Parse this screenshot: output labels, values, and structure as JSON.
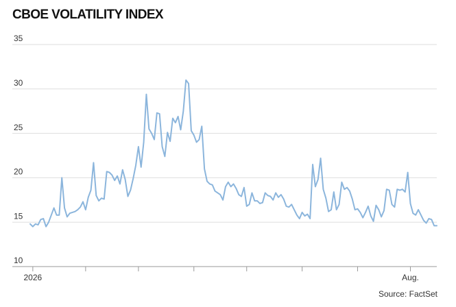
{
  "chart_data": {
    "type": "line",
    "title": "CBOE VOLATILITY INDEX",
    "source": "Source: FactSet",
    "color": "#8bb5dc",
    "grid": true,
    "ylim": [
      10,
      35
    ],
    "yticks": [
      10,
      15,
      20,
      25,
      30,
      35
    ],
    "xticks": [
      1,
      21,
      41,
      62,
      82,
      103,
      124,
      144
    ],
    "categories": [
      null,
      "2026",
      null,
      null,
      null,
      null,
      null,
      null,
      null,
      null,
      null,
      null,
      null,
      null,
      null,
      null,
      null,
      null,
      null,
      null,
      null,
      null,
      null,
      null,
      null,
      null,
      null,
      null,
      null,
      null,
      null,
      null,
      null,
      null,
      null,
      null,
      null,
      null,
      null,
      null,
      null,
      null,
      null,
      null,
      null,
      null,
      null,
      null,
      null,
      null,
      null,
      null,
      null,
      null,
      null,
      null,
      null,
      null,
      null,
      null,
      null,
      null,
      null,
      null,
      null,
      null,
      null,
      null,
      null,
      null,
      null,
      null,
      null,
      null,
      null,
      null,
      null,
      null,
      null,
      null,
      null,
      null,
      null,
      null,
      null,
      null,
      null,
      null,
      null,
      null,
      null,
      null,
      null,
      null,
      null,
      null,
      null,
      null,
      null,
      null,
      null,
      null,
      null,
      null,
      null,
      null,
      null,
      null,
      null,
      null,
      null,
      null,
      null,
      null,
      null,
      null,
      null,
      null,
      null,
      null,
      null,
      null,
      null,
      null,
      null,
      null,
      null,
      null,
      null,
      null,
      null,
      null,
      null,
      null,
      null,
      null,
      null,
      null,
      null,
      null,
      null,
      null,
      null,
      null,
      "Aug.",
      null,
      null,
      null,
      null,
      null,
      null,
      null,
      null,
      null,
      null
    ],
    "values": [
      14.8,
      14.5,
      14.8,
      14.7,
      15.3,
      15.4,
      14.5,
      15.0,
      15.8,
      16.6,
      15.8,
      15.8,
      20.0,
      16.6,
      15.6,
      16.0,
      16.1,
      16.2,
      16.4,
      16.7,
      17.3,
      16.4,
      17.8,
      18.6,
      21.7,
      18.0,
      17.4,
      17.7,
      17.6,
      20.7,
      20.6,
      20.3,
      19.7,
      20.2,
      19.3,
      20.9,
      19.8,
      17.9,
      18.6,
      19.9,
      21.4,
      23.5,
      21.2,
      24.0,
      29.4,
      25.5,
      25.0,
      24.3,
      27.3,
      27.2,
      23.5,
      22.4,
      25.1,
      24.1,
      26.7,
      26.2,
      26.9,
      25.4,
      27.5,
      31.0,
      30.6,
      25.3,
      24.8,
      24.0,
      24.3,
      25.8,
      21.0,
      19.6,
      19.3,
      19.2,
      18.5,
      18.3,
      18.1,
      17.5,
      19.0,
      19.5,
      19.0,
      19.3,
      18.8,
      18.1,
      17.9,
      18.9,
      16.8,
      17.0,
      18.3,
      17.4,
      17.4,
      17.1,
      17.2,
      18.3,
      18.0,
      17.9,
      17.5,
      18.3,
      17.8,
      18.1,
      17.6,
      16.8,
      16.7,
      17.0,
      16.4,
      15.8,
      15.4,
      16.1,
      15.7,
      15.9,
      15.4,
      21.5,
      19.0,
      19.8,
      22.2,
      18.7,
      17.7,
      16.2,
      16.4,
      18.4,
      16.4,
      17.0,
      19.5,
      18.7,
      18.9,
      18.5,
      17.6,
      16.4,
      16.5,
      16.1,
      15.5,
      16.1,
      16.8,
      15.7,
      15.1,
      16.9,
      16.4,
      15.6,
      16.3,
      18.7,
      18.6,
      17.0,
      16.7,
      18.7,
      18.6,
      18.7,
      18.4,
      20.6,
      17.1,
      16.0,
      15.8,
      16.4,
      15.8,
      15.2,
      14.9,
      15.4,
      15.3,
      14.6,
      14.6
    ]
  }
}
